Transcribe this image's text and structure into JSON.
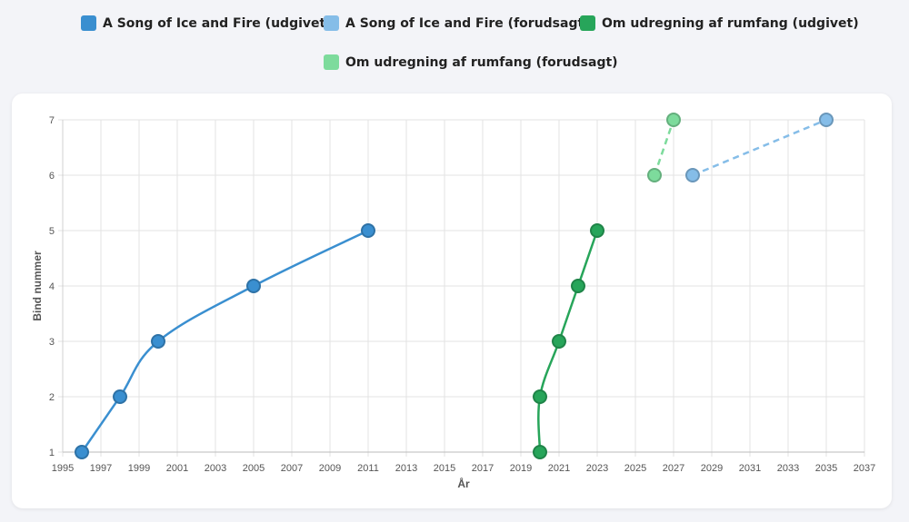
{
  "legend": [
    {
      "label": "A Song of Ice and Fire (udgivet)",
      "color": "#3a8fd0"
    },
    {
      "label": "A Song of Ice and Fire (forudsagt)",
      "color": "#85bde8"
    },
    {
      "label": "Om udregning af rumfang (udgivet)",
      "color": "#27a55a"
    },
    {
      "label": "Om udregning af rumfang (forudsagt)",
      "color": "#7ddb9c"
    }
  ],
  "chart_data": {
    "type": "line",
    "xlabel": "År",
    "ylabel": "Bind nummer",
    "xlim": [
      1995,
      2037
    ],
    "ylim": [
      1,
      7
    ],
    "x_ticks": [
      "1995",
      "1997",
      "1999",
      "2001",
      "2003",
      "2005",
      "2007",
      "2009",
      "2011",
      "2013",
      "2015",
      "2017",
      "2019",
      "2021",
      "2023",
      "2025",
      "2027",
      "2029",
      "2031",
      "2033",
      "2035",
      "2037"
    ],
    "y_ticks": [
      "1",
      "2",
      "3",
      "4",
      "5",
      "6",
      "7"
    ],
    "grid": true,
    "legend_position": "top",
    "series": [
      {
        "name": "A Song of Ice and Fire (udgivet)",
        "color": "#3a8fd0",
        "dashed": false,
        "curved": true,
        "points": [
          [
            1996,
            1
          ],
          [
            1998,
            2
          ],
          [
            2000,
            3
          ],
          [
            2005,
            4
          ],
          [
            2011,
            5
          ]
        ]
      },
      {
        "name": "A Song of Ice and Fire (forudsagt)",
        "color": "#85bde8",
        "dashed": true,
        "curved": false,
        "points": [
          [
            2028,
            6
          ],
          [
            2035,
            7
          ]
        ]
      },
      {
        "name": "Om udregning af rumfang (udgivet)",
        "color": "#27a55a",
        "dashed": false,
        "curved": true,
        "points": [
          [
            2020,
            1
          ],
          [
            2020,
            2
          ],
          [
            2021,
            3
          ],
          [
            2022,
            4
          ],
          [
            2023,
            5
          ]
        ]
      },
      {
        "name": "Om udregning af rumfang (forudsagt)",
        "color": "#7ddb9c",
        "dashed": true,
        "curved": false,
        "points": [
          [
            2026,
            6
          ],
          [
            2027,
            7
          ]
        ]
      }
    ]
  }
}
